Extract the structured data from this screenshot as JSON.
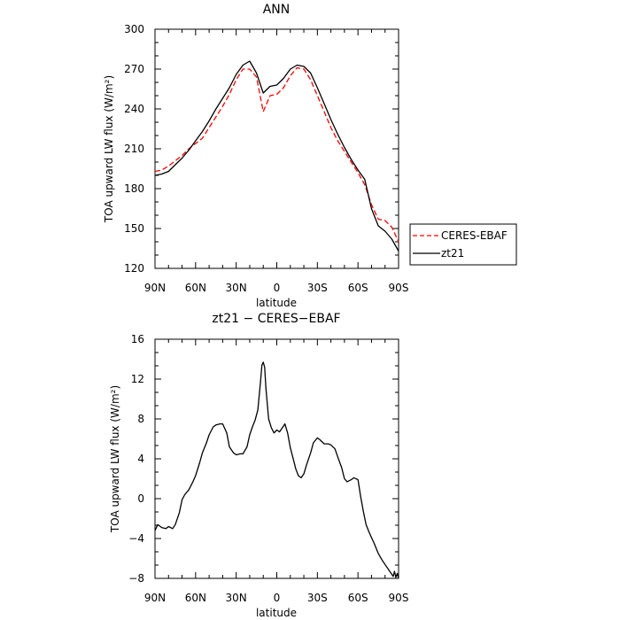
{
  "chart_data": [
    {
      "type": "line",
      "title": "ANN",
      "xlabel": "latitude",
      "ylabel": "TOA upward LW flux (W/m²)",
      "xlim": [
        90,
        -90
      ],
      "ylim": [
        120,
        300
      ],
      "xticks": [
        90,
        60,
        30,
        0,
        -30,
        -60,
        -90
      ],
      "xtick_labels": [
        "90N",
        "60N",
        "30N",
        "0",
        "30S",
        "60S",
        "90S"
      ],
      "yticks": [
        120,
        150,
        180,
        210,
        240,
        270,
        300
      ],
      "ytick_labels": [
        "120",
        "150",
        "180",
        "210",
        "240",
        "270",
        "300"
      ],
      "legend": {
        "placement": "outside-right"
      },
      "series": [
        {
          "name": "CERES-EBAF",
          "color": "#ff0000",
          "dash": "dashed",
          "x": [
            90,
            85,
            80,
            75,
            70,
            65,
            60,
            55,
            50,
            45,
            40,
            35,
            30,
            25,
            20,
            15,
            10,
            5,
            0,
            -5,
            -10,
            -15,
            -20,
            -25,
            -30,
            -35,
            -40,
            -45,
            -50,
            -55,
            -60,
            -65,
            -70,
            -75,
            -80,
            -85,
            -90
          ],
          "y": [
            193,
            194,
            197,
            201,
            205,
            210,
            214,
            218,
            226,
            234,
            242,
            251,
            262,
            270,
            270,
            264,
            238,
            250,
            251,
            256,
            265,
            271,
            270,
            262,
            250,
            238,
            226,
            216,
            208,
            200,
            192,
            183,
            168,
            157,
            156,
            151,
            140
          ]
        },
        {
          "name": "zt21",
          "color": "#000000",
          "dash": "solid",
          "x": [
            90,
            85,
            80,
            75,
            70,
            65,
            60,
            55,
            50,
            45,
            40,
            35,
            30,
            25,
            20,
            15,
            10,
            5,
            0,
            -5,
            -10,
            -15,
            -20,
            -25,
            -30,
            -35,
            -40,
            -45,
            -50,
            -55,
            -60,
            -65,
            -70,
            -75,
            -80,
            -85,
            -90
          ],
          "y": [
            190,
            191,
            193,
            198,
            203,
            209,
            216,
            223,
            231,
            240,
            248,
            256,
            266,
            273,
            276,
            267,
            252,
            257,
            258,
            263,
            270,
            273,
            272,
            267,
            256,
            244,
            232,
            221,
            211,
            202,
            194,
            187,
            165,
            152,
            148,
            142,
            133
          ]
        }
      ]
    },
    {
      "type": "line",
      "title": "zt21 − CERES−EBAF",
      "xlabel": "latitude",
      "ylabel": "TOA upward LW flux (W/m²)",
      "xlim": [
        90,
        -90
      ],
      "ylim": [
        -8,
        16
      ],
      "xticks": [
        90,
        60,
        30,
        0,
        -30,
        -60,
        -90
      ],
      "xtick_labels": [
        "90N",
        "60N",
        "30N",
        "0",
        "30S",
        "60S",
        "90S"
      ],
      "yticks": [
        -8,
        -4,
        0,
        4,
        8,
        12,
        16
      ],
      "ytick_labels": [
        "−8",
        "−4",
        "0",
        "4",
        "8",
        "12",
        "16"
      ],
      "series": [
        {
          "color": "#000000",
          "dash": "solid",
          "x": [
            90,
            88,
            85,
            82,
            80,
            77,
            75,
            72,
            70,
            68,
            65,
            62,
            60,
            57,
            55,
            52,
            50,
            47,
            45,
            42,
            40,
            37,
            35,
            32,
            30,
            27,
            25,
            22,
            20,
            18,
            16,
            14,
            12,
            11,
            10,
            9,
            8,
            6,
            4,
            2,
            0,
            -2,
            -4,
            -6,
            -8,
            -10,
            -12,
            -14,
            -16,
            -18,
            -20,
            -22,
            -25,
            -27,
            -30,
            -32,
            -35,
            -38,
            -40,
            -43,
            -45,
            -48,
            -50,
            -52,
            -55,
            -57,
            -60,
            -62,
            -64,
            -66,
            -68,
            -70,
            -72,
            -75,
            -78,
            -80,
            -82,
            -84,
            -85,
            -86,
            -87,
            -88,
            -89,
            -90
          ],
          "y": [
            -3.2,
            -2.6,
            -2.9,
            -3.0,
            -2.8,
            -3.0,
            -2.6,
            -1.4,
            -0.1,
            0.4,
            0.9,
            1.7,
            2.3,
            3.6,
            4.6,
            5.6,
            6.4,
            7.2,
            7.4,
            7.5,
            7.5,
            6.6,
            5.2,
            4.6,
            4.4,
            4.5,
            4.5,
            5.2,
            6.4,
            7.2,
            7.9,
            8.9,
            11.8,
            13.4,
            13.7,
            13.2,
            11.0,
            8.0,
            7.1,
            6.6,
            6.9,
            6.7,
            7.1,
            7.5,
            6.6,
            5.1,
            4.1,
            3.0,
            2.3,
            2.1,
            2.5,
            3.4,
            4.6,
            5.6,
            6.1,
            5.9,
            5.5,
            5.5,
            5.4,
            5.0,
            4.2,
            3.1,
            2.0,
            1.7,
            1.9,
            2.1,
            1.9,
            0.2,
            -1.3,
            -2.6,
            -3.3,
            -3.9,
            -4.5,
            -5.5,
            -6.2,
            -6.6,
            -7.0,
            -7.4,
            -7.6,
            -7.8,
            -7.3,
            -7.9,
            -7.5,
            -8.0
          ]
        }
      ]
    }
  ]
}
